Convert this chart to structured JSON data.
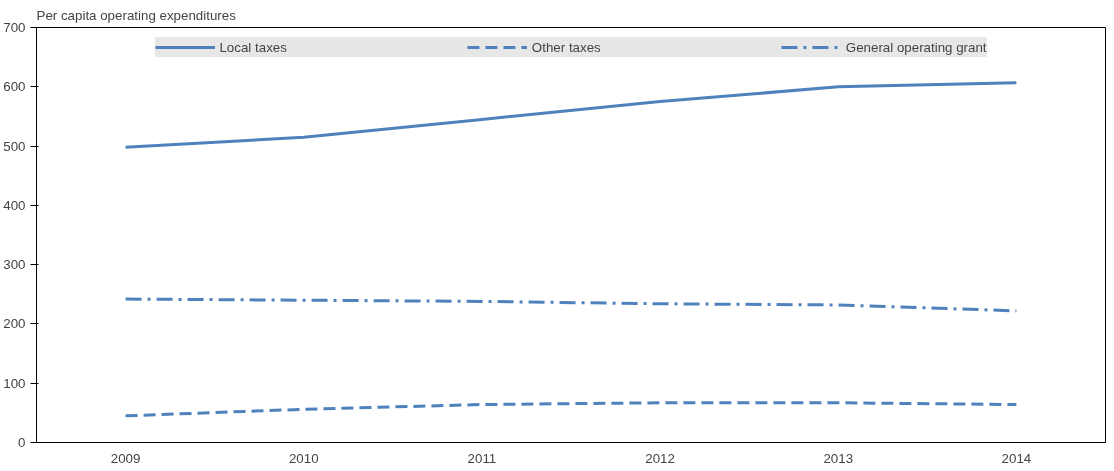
{
  "chart_data": {
    "type": "line",
    "ylabel": "Per capita operating expenditures",
    "categories": [
      "2009",
      "2010",
      "2011",
      "2012",
      "2013",
      "2014"
    ],
    "series": [
      {
        "name": "Local taxes",
        "color": "#4f81bd",
        "line_style": "solid",
        "values": [
          498,
          515,
          545,
          575,
          600,
          607
        ]
      },
      {
        "name": "Other taxes",
        "color": "#4f81bd",
        "line_style": "dashed",
        "values": [
          45,
          56,
          64,
          67,
          67,
          64
        ]
      },
      {
        "name": "General operating grant",
        "color": "#4f81bd",
        "line_style": "dashdot",
        "values": [
          242,
          240,
          238,
          234,
          232,
          222
        ]
      }
    ],
    "ylim": [
      0,
      700
    ],
    "yticks": [
      0,
      100,
      200,
      300,
      400,
      500,
      600,
      700
    ],
    "legend": "top"
  }
}
